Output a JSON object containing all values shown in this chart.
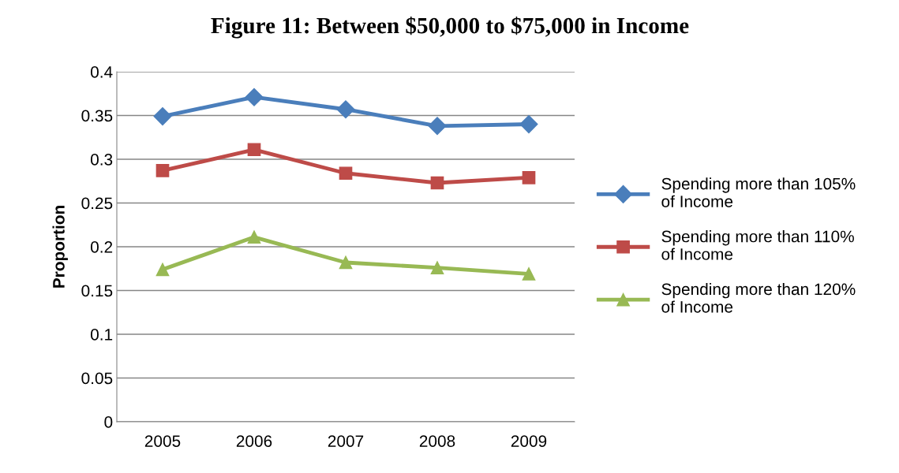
{
  "chart_data": {
    "type": "line",
    "title": "Figure 11: Between $50,000 to $75,000 in Income",
    "ylabel": "Proportion",
    "categories": [
      "2005",
      "2006",
      "2007",
      "2008",
      "2009"
    ],
    "series": [
      {
        "name": "Spending more than 105% of Income",
        "color": "#4a7ebb",
        "marker": "diamond",
        "values": [
          0.349,
          0.371,
          0.357,
          0.338,
          0.34
        ]
      },
      {
        "name": "Spending more than 110% of Income",
        "color": "#be4b48",
        "marker": "square",
        "values": [
          0.287,
          0.311,
          0.284,
          0.273,
          0.279
        ]
      },
      {
        "name": "Spending more than 120% of Income",
        "color": "#98b954",
        "marker": "triangle",
        "values": [
          0.174,
          0.211,
          0.182,
          0.176,
          0.169
        ]
      }
    ],
    "ylim": [
      0,
      0.4
    ],
    "yticks": [
      0,
      0.05,
      0.1,
      0.15,
      0.2,
      0.25,
      0.3,
      0.35,
      0.4
    ],
    "grid": "y",
    "legend": "right",
    "line_style": "solid"
  }
}
